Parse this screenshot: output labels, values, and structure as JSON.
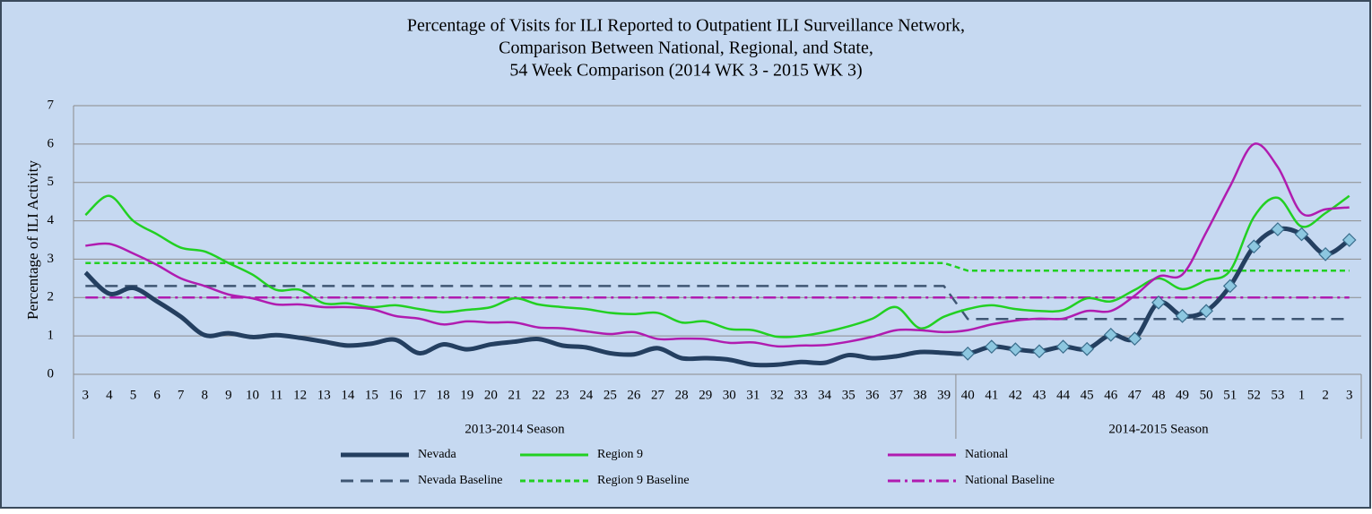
{
  "chart_data": {
    "type": "line",
    "title": [
      "Percentage of Visits for ILI Reported to Outpatient ILI Surveillance Network,",
      "Comparison Between National, Regional, and State,",
      "54 Week Comparison (2014 WK 3 - 2015 WK 3)"
    ],
    "y_label": "Percentage of ILI Activity",
    "categories": [
      "3",
      "4",
      "5",
      "6",
      "7",
      "8",
      "9",
      "10",
      "11",
      "12",
      "13",
      "14",
      "15",
      "16",
      "17",
      "18",
      "19",
      "20",
      "21",
      "22",
      "23",
      "24",
      "25",
      "26",
      "27",
      "28",
      "29",
      "30",
      "31",
      "32",
      "33",
      "34",
      "35",
      "36",
      "37",
      "38",
      "39",
      "40",
      "41",
      "42",
      "43",
      "44",
      "45",
      "46",
      "47",
      "48",
      "49",
      "50",
      "51",
      "52",
      "53",
      "1",
      "2",
      "3"
    ],
    "groups": [
      {
        "label": "2013-2014 Season",
        "span": 37
      },
      {
        "label": "2014-2015 Season",
        "span": 17
      }
    ],
    "ylim": [
      0,
      7
    ],
    "yticks": [
      0,
      1,
      2,
      3,
      4,
      5,
      6,
      7
    ],
    "grid": true,
    "series": [
      {
        "name": "Nevada",
        "color": "#243f60",
        "width": 5,
        "dash": "solid",
        "smooth": true,
        "marker": "diamond",
        "marker_color": "#8dc7e0",
        "marker_group": 1,
        "values": [
          2.65,
          2.1,
          2.25,
          1.9,
          1.5,
          1.02,
          1.07,
          0.97,
          1.02,
          0.95,
          0.85,
          0.75,
          0.8,
          0.9,
          0.55,
          0.78,
          0.65,
          0.78,
          0.85,
          0.92,
          0.75,
          0.7,
          0.55,
          0.52,
          0.68,
          0.42,
          0.42,
          0.38,
          0.25,
          0.25,
          0.32,
          0.3,
          0.5,
          0.42,
          0.47,
          0.58,
          0.56,
          0.54,
          0.72,
          0.65,
          0.6,
          0.72,
          0.66,
          1.03,
          0.93,
          1.87,
          1.52,
          1.65,
          2.3,
          3.33,
          3.78,
          3.65,
          3.13,
          3.5
        ]
      },
      {
        "name": "Region 9",
        "color": "#22d022",
        "width": 2.5,
        "dash": "solid",
        "smooth": true,
        "values": [
          4.15,
          4.65,
          4.0,
          3.65,
          3.3,
          3.2,
          2.9,
          2.6,
          2.2,
          2.2,
          1.85,
          1.85,
          1.75,
          1.8,
          1.7,
          1.62,
          1.68,
          1.75,
          1.98,
          1.82,
          1.75,
          1.7,
          1.6,
          1.57,
          1.6,
          1.35,
          1.38,
          1.18,
          1.15,
          0.98,
          1.0,
          1.1,
          1.25,
          1.45,
          1.75,
          1.2,
          1.5,
          1.7,
          1.8,
          1.7,
          1.65,
          1.67,
          1.98,
          1.9,
          2.2,
          2.5,
          2.22,
          2.45,
          2.7,
          4.1,
          4.6,
          3.85,
          4.2,
          4.65
        ]
      },
      {
        "name": "National",
        "color": "#b01cb0",
        "width": 2.5,
        "dash": "solid",
        "smooth": true,
        "values": [
          3.35,
          3.4,
          3.15,
          2.85,
          2.5,
          2.3,
          2.08,
          1.98,
          1.82,
          1.82,
          1.75,
          1.75,
          1.7,
          1.52,
          1.45,
          1.3,
          1.38,
          1.35,
          1.35,
          1.22,
          1.2,
          1.12,
          1.05,
          1.1,
          0.92,
          0.93,
          0.92,
          0.82,
          0.83,
          0.73,
          0.75,
          0.76,
          0.85,
          0.98,
          1.15,
          1.15,
          1.1,
          1.15,
          1.3,
          1.4,
          1.45,
          1.45,
          1.65,
          1.65,
          2.05,
          2.55,
          2.6,
          3.7,
          4.9,
          6.0,
          5.4,
          4.2,
          4.3,
          4.35
        ]
      },
      {
        "name": "Nevada Baseline",
        "color": "#3f5673",
        "width": 2.5,
        "dash": "14 8",
        "smooth": false,
        "values": [
          2.3,
          2.3,
          2.3,
          2.3,
          2.3,
          2.3,
          2.3,
          2.3,
          2.3,
          2.3,
          2.3,
          2.3,
          2.3,
          2.3,
          2.3,
          2.3,
          2.3,
          2.3,
          2.3,
          2.3,
          2.3,
          2.3,
          2.3,
          2.3,
          2.3,
          2.3,
          2.3,
          2.3,
          2.3,
          2.3,
          2.3,
          2.3,
          2.3,
          2.3,
          2.3,
          2.3,
          2.3,
          1.44,
          1.44,
          1.44,
          1.44,
          1.44,
          1.44,
          1.44,
          1.44,
          1.44,
          1.44,
          1.44,
          1.44,
          1.44,
          1.44,
          1.44,
          1.44,
          1.44
        ]
      },
      {
        "name": "Region 9 Baseline",
        "color": "#22d022",
        "width": 2.5,
        "dash": "6 4",
        "smooth": false,
        "values": [
          2.9,
          2.9,
          2.9,
          2.9,
          2.9,
          2.9,
          2.9,
          2.9,
          2.9,
          2.9,
          2.9,
          2.9,
          2.9,
          2.9,
          2.9,
          2.9,
          2.9,
          2.9,
          2.9,
          2.9,
          2.9,
          2.9,
          2.9,
          2.9,
          2.9,
          2.9,
          2.9,
          2.9,
          2.9,
          2.9,
          2.9,
          2.9,
          2.9,
          2.9,
          2.9,
          2.9,
          2.9,
          2.7,
          2.7,
          2.7,
          2.7,
          2.7,
          2.7,
          2.7,
          2.7,
          2.7,
          2.7,
          2.7,
          2.7,
          2.7,
          2.7,
          2.7,
          2.7,
          2.7
        ]
      },
      {
        "name": "National Baseline",
        "color": "#b01cb0",
        "width": 2.5,
        "dash": "14 5 3 5",
        "smooth": false,
        "values": [
          2,
          2,
          2,
          2,
          2,
          2,
          2,
          2,
          2,
          2,
          2,
          2,
          2,
          2,
          2,
          2,
          2,
          2,
          2,
          2,
          2,
          2,
          2,
          2,
          2,
          2,
          2,
          2,
          2,
          2,
          2,
          2,
          2,
          2,
          2,
          2,
          2,
          2,
          2,
          2,
          2,
          2,
          2,
          2,
          2,
          2,
          2,
          2,
          2,
          2,
          2,
          2,
          2,
          2
        ]
      }
    ]
  }
}
